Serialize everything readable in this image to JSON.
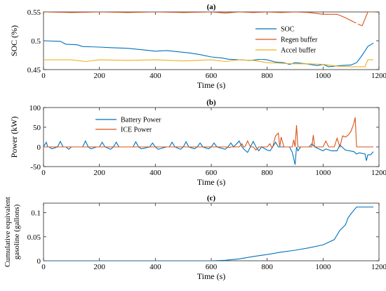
{
  "colors": {
    "blue": "#0072BD",
    "orange": "#D95319",
    "yellow": "#EDB120"
  },
  "chart_data": [
    {
      "type": "line",
      "title": "(a)",
      "xlabel": "Time (s)",
      "ylabel": [
        "SOC (%)"
      ],
      "xlim": [
        0,
        1200
      ],
      "ylim": [
        0.45,
        0.55
      ],
      "xticks": [
        "0",
        "200",
        "400",
        "600",
        "800",
        "1000",
        "1200"
      ],
      "yticks": [
        "0.45",
        "0.5",
        "0.55"
      ],
      "legend_position": "right",
      "series": [
        {
          "name": "SOC",
          "color": "blue",
          "x": [
            0,
            60,
            80,
            120,
            140,
            200,
            240,
            300,
            360,
            400,
            440,
            480,
            520,
            560,
            600,
            640,
            660,
            700,
            740,
            780,
            800,
            830,
            860,
            880,
            900,
            940,
            980,
            1000,
            1020,
            1060,
            1100,
            1120,
            1140,
            1160,
            1180
          ],
          "y": [
            0.5,
            0.499,
            0.494,
            0.493,
            0.49,
            0.489,
            0.488,
            0.487,
            0.484,
            0.482,
            0.483,
            0.481,
            0.479,
            0.476,
            0.472,
            0.47,
            0.468,
            0.467,
            0.466,
            0.468,
            0.467,
            0.463,
            0.462,
            0.459,
            0.462,
            0.46,
            0.457,
            0.459,
            0.455,
            0.457,
            0.458,
            0.462,
            0.475,
            0.49,
            0.496
          ]
        },
        {
          "name": "Regen buffer",
          "color": "orange",
          "x": [
            0,
            100,
            200,
            300,
            400,
            500,
            600,
            650,
            700,
            750,
            800,
            850,
            900,
            950,
            1000,
            1050,
            1080,
            1100,
            1120,
            1140,
            1160,
            1180
          ],
          "y": [
            0.55,
            0.549,
            0.55,
            0.549,
            0.55,
            0.549,
            0.55,
            0.548,
            0.55,
            0.549,
            0.55,
            0.549,
            0.55,
            0.549,
            0.546,
            0.546,
            0.54,
            0.535,
            0.53,
            0.526,
            0.55,
            0.55
          ]
        },
        {
          "name": "Accel buffer",
          "color": "yellow",
          "x": [
            0,
            100,
            150,
            200,
            300,
            400,
            500,
            600,
            650,
            700,
            750,
            800,
            850,
            900,
            950,
            1000,
            1050,
            1100,
            1150,
            1160,
            1180
          ],
          "y": [
            0.467,
            0.467,
            0.464,
            0.467,
            0.466,
            0.467,
            0.465,
            0.467,
            0.464,
            0.467,
            0.466,
            0.462,
            0.461,
            0.46,
            0.46,
            0.459,
            0.456,
            0.455,
            0.455,
            0.467,
            0.467
          ]
        }
      ]
    },
    {
      "type": "line",
      "title": "(b)",
      "xlabel": "Time (s)",
      "ylabel": [
        "Power (kW)"
      ],
      "xlim": [
        0,
        1200
      ],
      "ylim": [
        -50,
        100
      ],
      "xticks": [
        "0",
        "200",
        "400",
        "600",
        "800",
        "1000",
        "1200"
      ],
      "yticks": [
        "-50",
        "0",
        "50",
        "100"
      ],
      "legend_position": "top-left",
      "series": [
        {
          "name": "Battery Power",
          "color": "blue",
          "x": [
            0,
            10,
            15,
            20,
            30,
            50,
            60,
            70,
            80,
            90,
            100,
            140,
            150,
            160,
            170,
            190,
            200,
            210,
            220,
            240,
            250,
            260,
            270,
            280,
            320,
            330,
            340,
            350,
            380,
            390,
            400,
            410,
            440,
            450,
            460,
            470,
            490,
            500,
            510,
            520,
            540,
            550,
            560,
            570,
            590,
            600,
            610,
            620,
            650,
            660,
            670,
            680,
            700,
            710,
            720,
            730,
            740,
            750,
            760,
            770,
            780,
            800,
            810,
            820,
            830,
            840,
            880,
            890,
            900,
            905,
            910,
            920,
            950,
            960,
            970,
            1000,
            1010,
            1030,
            1050,
            1060,
            1080,
            1110,
            1120,
            1130,
            1150,
            1155,
            1160,
            1170,
            1180
          ],
          "y": [
            0,
            12,
            0,
            0,
            -5,
            0,
            14,
            0,
            0,
            -6,
            0,
            0,
            15,
            0,
            -5,
            0,
            0,
            12,
            0,
            -6,
            0,
            12,
            0,
            0,
            0,
            13,
            0,
            -5,
            0,
            10,
            0,
            -6,
            0,
            0,
            12,
            0,
            -6,
            0,
            13,
            0,
            -5,
            0,
            10,
            0,
            -5,
            0,
            10,
            0,
            -6,
            0,
            10,
            0,
            15,
            0,
            -8,
            -14,
            0,
            14,
            0,
            -10,
            0,
            -8,
            -10,
            0,
            12,
            0,
            0,
            -14,
            -45,
            0,
            -10,
            0,
            0,
            8,
            0,
            -10,
            -5,
            -10,
            -10,
            5,
            -8,
            -12,
            -18,
            -15,
            -18,
            -35,
            -20,
            -20,
            -12
          ]
        },
        {
          "name": "ICE Power",
          "color": "orange",
          "x": [
            0,
            650,
            660,
            665,
            670,
            700,
            710,
            715,
            720,
            730,
            740,
            750,
            760,
            770,
            780,
            800,
            810,
            815,
            820,
            830,
            840,
            845,
            850,
            860,
            870,
            880,
            890,
            895,
            900,
            905,
            910,
            950,
            960,
            965,
            970,
            1000,
            1010,
            1020,
            1040,
            1050,
            1060,
            1070,
            1080,
            1090,
            1100,
            1110,
            1115,
            1120,
            1130,
            1140,
            1150,
            1160,
            1180
          ],
          "y": [
            0,
            0,
            0,
            -2,
            0,
            0,
            8,
            0,
            0,
            15,
            0,
            0,
            -8,
            0,
            0,
            0,
            8,
            0,
            0,
            28,
            35,
            0,
            25,
            0,
            0,
            0,
            0,
            18,
            0,
            55,
            0,
            0,
            0,
            30,
            0,
            0,
            15,
            0,
            0,
            22,
            0,
            28,
            25,
            30,
            40,
            60,
            75,
            0,
            0,
            0,
            0,
            0,
            0
          ]
        }
      ]
    },
    {
      "type": "line",
      "title": "(c)",
      "xlabel": "Time (s)",
      "ylabel": [
        "Cumulative equivalent",
        "gasoline (gallons)"
      ],
      "xlim": [
        0,
        1200
      ],
      "ylim": [
        0,
        0.12
      ],
      "xticks": [
        "0",
        "200",
        "400",
        "600",
        "800",
        "1000",
        "1200"
      ],
      "yticks": [
        "0",
        "0.05",
        "0.1"
      ],
      "series": [
        {
          "name": "",
          "color": "blue",
          "x": [
            0,
            600,
            650,
            700,
            750,
            800,
            850,
            900,
            950,
            1000,
            1040,
            1060,
            1080,
            1090,
            1100,
            1120,
            1180
          ],
          "y": [
            0,
            0,
            0.001,
            0.004,
            0.009,
            0.013,
            0.018,
            0.022,
            0.027,
            0.033,
            0.044,
            0.063,
            0.075,
            0.09,
            0.098,
            0.112,
            0.112
          ]
        }
      ]
    }
  ]
}
